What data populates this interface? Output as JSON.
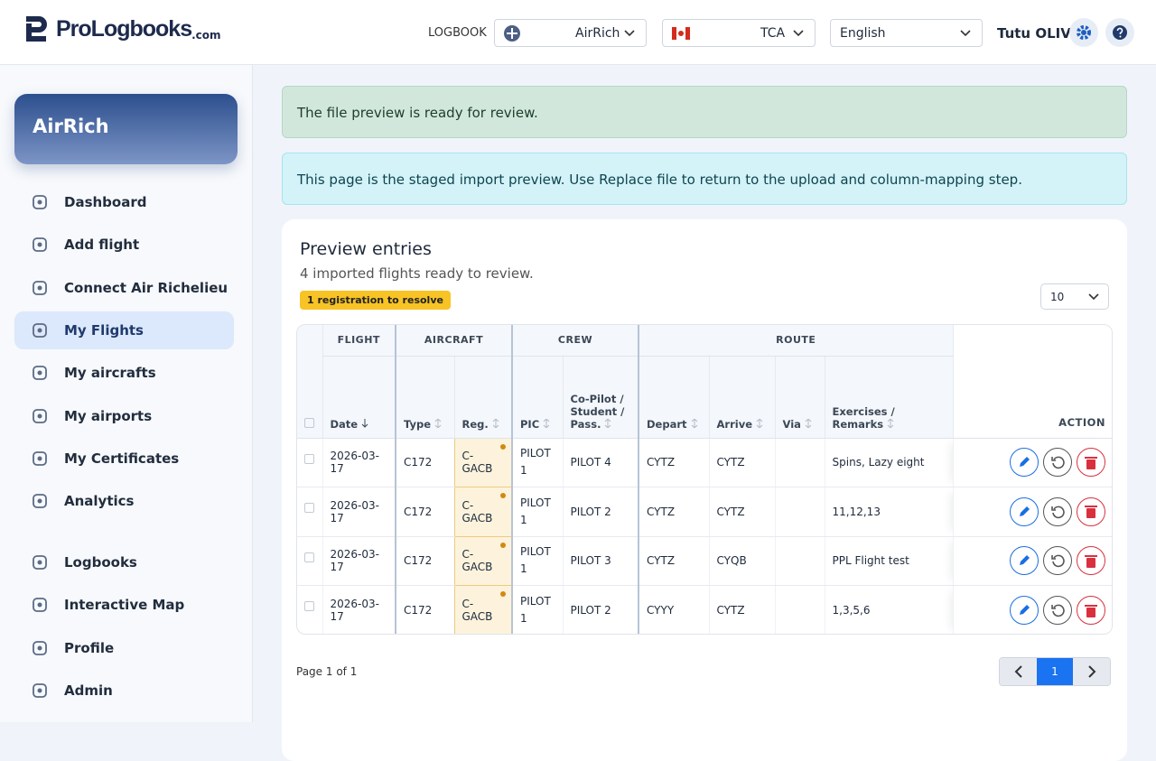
{
  "header": {
    "logo": "ProLogbooks",
    "logo_suffix": ".com",
    "logbook_label": "LOGBOOK",
    "logbook": "AirRich",
    "organization": "TCA",
    "language": "English",
    "user": "Tutu OLIV"
  },
  "sidebar": {
    "account": "AirRich",
    "nav": [
      "Dashboard",
      "Add flight",
      "Connect Air Richelieu",
      "My Flights",
      "My aircrafts",
      "My airports",
      "My Certificates",
      "Analytics"
    ],
    "active": "My Flights",
    "secondary": [
      "Logbooks",
      "Interactive Map",
      "Profile",
      "Admin"
    ]
  },
  "alerts": {
    "success": "The file preview is ready for review.",
    "info": "This page is the staged import preview. Use Replace file to return to the upload and column-mapping step."
  },
  "card": {
    "title": "Preview entries",
    "subtitle": "4 imported flights ready to review.",
    "badge": "1 registration to resolve",
    "page_size": "10"
  },
  "table": {
    "groups": [
      "FLIGHT",
      "AIRCRAFT",
      "CREW",
      "ROUTE"
    ],
    "columns": [
      "Date",
      "Type",
      "Reg.",
      "PIC",
      "Co-Pilot / Student / Pass.",
      "Depart",
      "Arrive",
      "Via",
      "Exercises / Remarks"
    ],
    "action": "ACTION",
    "rows": [
      [
        "2026-03-17",
        "C172",
        "C-GACB",
        "PILOT 1",
        "PILOT 4",
        "CYTZ",
        "CYTZ",
        null,
        "Spins, Lazy eight"
      ],
      [
        "2026-03-17",
        "C172",
        "C-GACB",
        "PILOT 1",
        "PILOT 2",
        "CYTZ",
        "CYTZ",
        null,
        "11,12,13"
      ],
      [
        "2026-03-17",
        "C172",
        "C-GACB",
        "PILOT 1",
        "PILOT 3",
        "CYTZ",
        "CYQB",
        null,
        "PPL Flight test"
      ],
      [
        "2026-03-17",
        "C172",
        "C-GACB",
        "PILOT 1",
        "PILOT 2",
        "CYYY",
        "CYTZ",
        null,
        "1,3,5,6"
      ]
    ]
  },
  "pagination": {
    "info": "Page 1 of 1",
    "page": "1"
  }
}
